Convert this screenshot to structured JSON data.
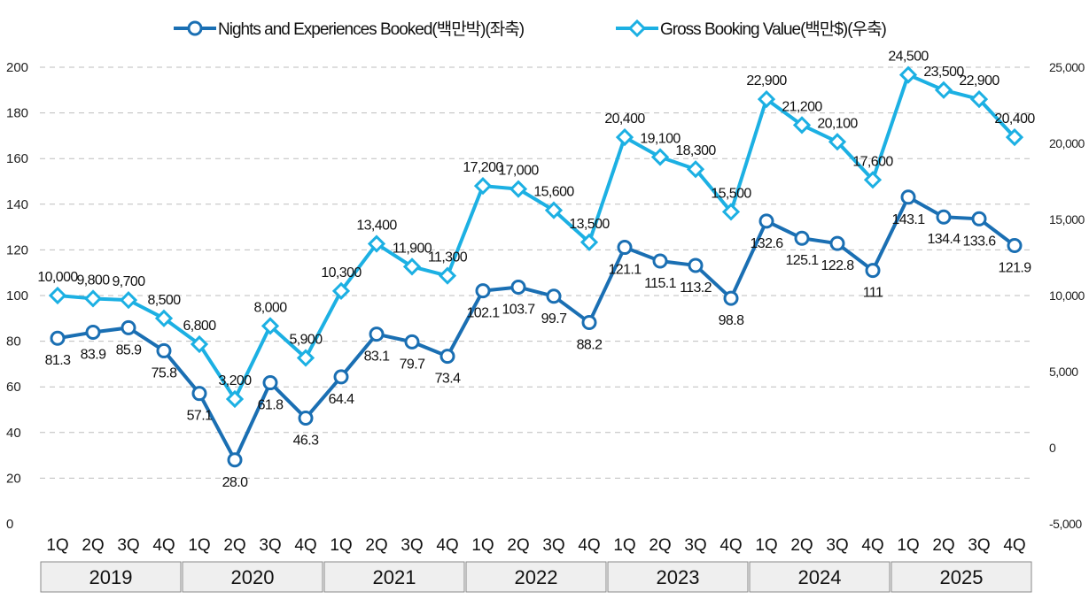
{
  "chart_data": {
    "type": "line",
    "title": "",
    "legend_position": "top-center",
    "grid": true,
    "x_quarters": [
      "1Q",
      "2Q",
      "3Q",
      "4Q",
      "1Q",
      "2Q",
      "3Q",
      "4Q",
      "1Q",
      "2Q",
      "3Q",
      "4Q",
      "1Q",
      "2Q",
      "3Q",
      "4Q",
      "1Q",
      "2Q",
      "3Q",
      "4Q",
      "1Q",
      "2Q",
      "3Q",
      "4Q",
      "1Q",
      "2Q",
      "3Q",
      "4Q"
    ],
    "x_years": [
      "2019",
      "2020",
      "2021",
      "2022",
      "2023",
      "2024",
      "2025"
    ],
    "y_left": {
      "range": [
        0,
        200
      ],
      "ticks": [
        "0",
        "20",
        "40",
        "60",
        "80",
        "100",
        "120",
        "140",
        "160",
        "180",
        "200"
      ]
    },
    "y_right": {
      "range": [
        -5000,
        25000
      ],
      "ticks": [
        "-5,000",
        "0",
        "5,000",
        "10,000",
        "15,000",
        "20,000",
        "25,000"
      ]
    },
    "series": [
      {
        "name": "Nights and Experiences Booked(백만박)(좌축)",
        "axis": "left",
        "color": "#1a6fb3",
        "marker": "circle",
        "values": [
          81.3,
          83.9,
          85.9,
          75.8,
          57.1,
          28.0,
          61.8,
          46.3,
          64.4,
          83.1,
          79.7,
          73.4,
          102.1,
          103.7,
          99.7,
          88.2,
          121.1,
          115.1,
          113.2,
          98.8,
          132.6,
          125.1,
          122.8,
          111,
          143.1,
          134.4,
          133.6,
          121.9
        ],
        "labels": [
          "81.3",
          "83.9",
          "85.9",
          "75.8",
          "57.1",
          "28.0",
          "61.8",
          "46.3",
          "64.4",
          "83.1",
          "79.7",
          "73.4",
          "102.1",
          "103.7",
          "99.7",
          "88.2",
          "121.1",
          "115.1",
          "113.2",
          "98.8",
          "132.6",
          "125.1",
          "122.8",
          "111",
          "143.1",
          "134.4",
          "133.6",
          "121.9"
        ]
      },
      {
        "name": "Gross Booking Value(백만$)(우축)",
        "axis": "right",
        "color": "#1cb0e3",
        "marker": "diamond",
        "values": [
          10000,
          9800,
          9700,
          8500,
          6800,
          3200,
          8000,
          5900,
          10300,
          13400,
          11900,
          11300,
          17200,
          17000,
          15600,
          13500,
          20400,
          19100,
          18300,
          15500,
          22900,
          21200,
          20100,
          17600,
          24500,
          23500,
          22900,
          20400
        ],
        "labels": [
          "10,000",
          "9,800",
          "9,700",
          "8,500",
          "6,800",
          "3,200",
          "8,000",
          "5,900",
          "10,300",
          "13,400",
          "11,900",
          "11,300",
          "17,200",
          "17,000",
          "15,600",
          "13,500",
          "20,400",
          "19,100",
          "18,300",
          "15,500",
          "22,900",
          "21,200",
          "20,100",
          "17,600",
          "24,500",
          "23,500",
          "22,900",
          "20,400"
        ]
      }
    ]
  }
}
